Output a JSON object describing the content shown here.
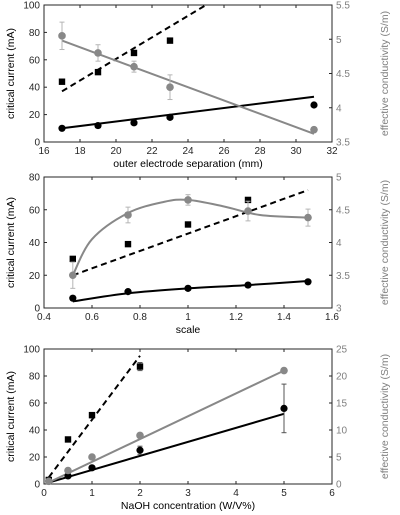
{
  "colors": {
    "black": "#000000",
    "gray": "#888888",
    "errorbar": "#b5b5b5",
    "axis": "#262626",
    "right_axis": "#7f7f7f"
  },
  "chart_data": [
    {
      "type": "scatter",
      "xlabel": "outer electrode separation (mm)",
      "ylabel": "critical current (mA)",
      "y2label": "effective conductivity (S/m)",
      "xlim": [
        16,
        32
      ],
      "ylim": [
        0,
        100
      ],
      "y2lim": [
        3.5,
        5.5
      ],
      "xticks": [
        16,
        18,
        20,
        22,
        24,
        26,
        28,
        30,
        32
      ],
      "yticks": [
        0,
        20,
        40,
        60,
        80,
        100
      ],
      "y2ticks": [
        3.5,
        4,
        4.5,
        5,
        5.5
      ],
      "y2tick_labels": [
        "3.5",
        "4",
        "4.5",
        "5",
        "5.5"
      ],
      "series": [
        {
          "axis": "left",
          "marker": "square",
          "line": "dashed",
          "x": [
            17,
            19,
            21,
            23
          ],
          "y": [
            44,
            51,
            65,
            74
          ],
          "fit": [
            [
              17,
              37
            ],
            [
              25,
              100
            ]
          ]
        },
        {
          "axis": "left",
          "marker": "circle",
          "line": "solid",
          "x": [
            17,
            19,
            21,
            23,
            31
          ],
          "y": [
            10,
            12,
            14,
            18,
            27
          ],
          "fit": [
            [
              17,
              10
            ],
            [
              31,
              33
            ]
          ]
        },
        {
          "axis": "right",
          "marker": "circle-gray",
          "line": "solid-gray",
          "x": [
            17,
            19,
            21,
            23,
            31
          ],
          "y": [
            5.05,
            4.8,
            4.6,
            4.3,
            3.68
          ],
          "err": [
            0.2,
            0.12,
            0.08,
            0.18,
            0.03
          ],
          "fit": [
            [
              17,
              4.98
            ],
            [
              31,
              3.62
            ]
          ]
        }
      ]
    },
    {
      "type": "scatter",
      "xlabel": "scale",
      "ylabel": "critical current (mA)",
      "y2label": "effective conductivity (S/m)",
      "xlim": [
        0.4,
        1.6
      ],
      "ylim": [
        0,
        80
      ],
      "y2lim": [
        3,
        5
      ],
      "xticks": [
        0.4,
        0.6,
        0.8,
        1,
        1.2,
        1.4,
        1.6
      ],
      "yticks": [
        0,
        20,
        40,
        60,
        80
      ],
      "y2ticks": [
        3,
        3.5,
        4,
        4.5,
        5
      ],
      "y2tick_labels": [
        "3",
        "3.5",
        "4",
        "4.5",
        "5"
      ],
      "series": [
        {
          "axis": "left",
          "marker": "square",
          "line": "dashed",
          "x": [
            0.52,
            0.75,
            1,
            1.25
          ],
          "y": [
            30,
            39,
            51,
            66
          ],
          "fit": [
            [
              0.52,
              20
            ],
            [
              1.5,
              72
            ]
          ]
        },
        {
          "axis": "left",
          "marker": "circle",
          "line": "solid",
          "x": [
            0.52,
            0.75,
            1,
            1.25,
            1.5
          ],
          "y": [
            6,
            10,
            12,
            14,
            16
          ],
          "fit": [
            [
              0.52,
              4
            ],
            [
              0.75,
              9
            ],
            [
              1,
              12
            ],
            [
              1.25,
              14
            ],
            [
              1.5,
              16.5
            ]
          ]
        },
        {
          "axis": "right",
          "marker": "circle-gray",
          "line": "solid-gray",
          "x": [
            0.52,
            0.75,
            1,
            1.25,
            1.5
          ],
          "y": [
            3.5,
            4.42,
            4.65,
            4.48,
            4.38
          ],
          "err": [
            0.2,
            0.12,
            0.08,
            0.15,
            0.13
          ],
          "fit": [
            [
              0.52,
              3.5
            ],
            [
              0.6,
              4.05
            ],
            [
              0.75,
              4.45
            ],
            [
              0.9,
              4.62
            ],
            [
              1,
              4.65
            ],
            [
              1.15,
              4.55
            ],
            [
              1.3,
              4.42
            ],
            [
              1.5,
              4.38
            ]
          ]
        }
      ]
    },
    {
      "type": "scatter",
      "xlabel": "NaOH concentration (W/V%)",
      "ylabel": "critical current (mA)",
      "y2label": "effective conductivity (S/m)",
      "xlim": [
        0,
        6
      ],
      "ylim": [
        0,
        100
      ],
      "y2lim": [
        0,
        25
      ],
      "xticks": [
        0,
        1,
        2,
        3,
        4,
        5,
        6
      ],
      "yticks": [
        0,
        20,
        40,
        60,
        80,
        100
      ],
      "y2ticks": [
        0,
        5,
        10,
        15,
        20,
        25
      ],
      "y2tick_labels": [
        "0",
        "5",
        "10",
        "15",
        "20",
        "25"
      ],
      "series": [
        {
          "axis": "left",
          "marker": "square",
          "line": "dashed",
          "x": [
            0.1,
            0.5,
            1,
            2
          ],
          "y": [
            3,
            33,
            51,
            87
          ],
          "err": [
            0,
            0,
            2,
            3
          ],
          "fit": [
            [
              0.1,
              5
            ],
            [
              2,
              95
            ]
          ]
        },
        {
          "axis": "left",
          "marker": "circle",
          "line": "solid",
          "x": [
            0.1,
            0.5,
            1,
            2,
            5
          ],
          "y": [
            2,
            6,
            12,
            25,
            56
          ],
          "err": [
            0,
            0,
            1,
            3,
            18
          ],
          "fit": [
            [
              0.1,
              1
            ],
            [
              5,
              52
            ]
          ]
        },
        {
          "axis": "right",
          "marker": "circle-gray",
          "line": "solid-gray",
          "x": [
            0.1,
            0.5,
            1,
            2,
            5
          ],
          "y": [
            0.5,
            2.5,
            5,
            9,
            21
          ],
          "fit": [
            [
              0.1,
              0.3
            ],
            [
              5,
              21
            ]
          ]
        }
      ]
    }
  ]
}
